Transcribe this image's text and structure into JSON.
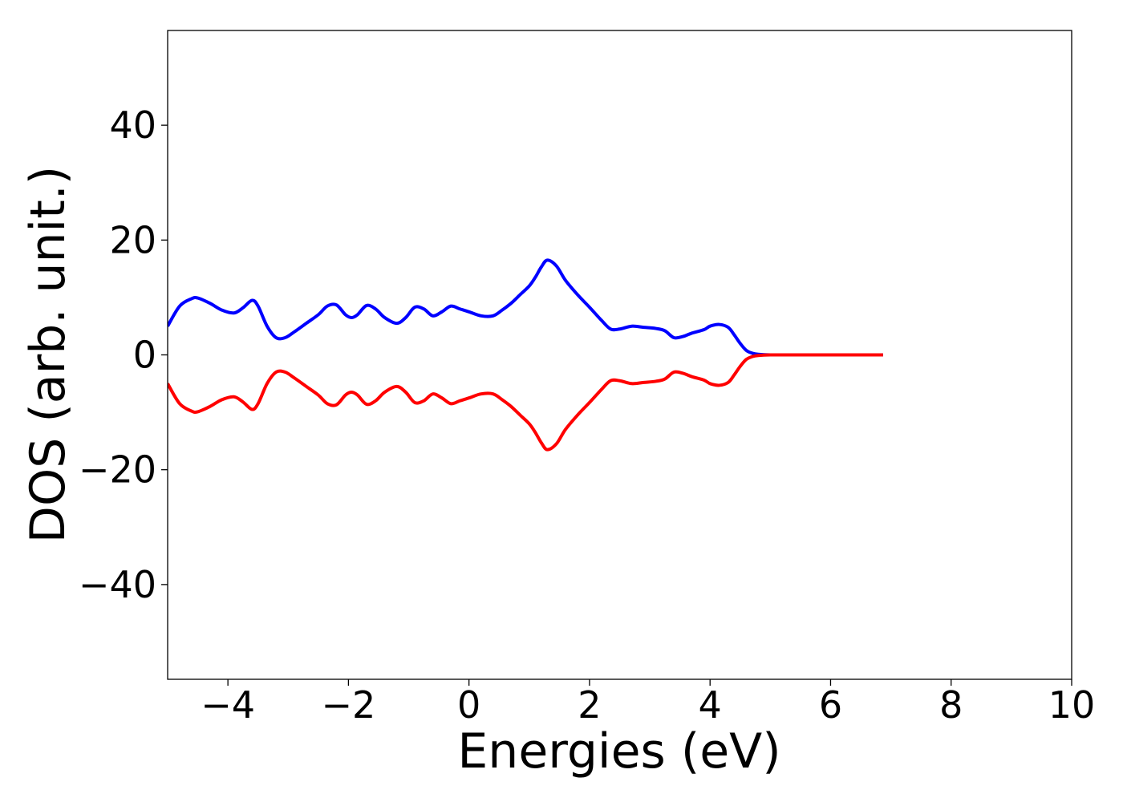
{
  "chart_data": {
    "type": "line",
    "title": "",
    "xlabel": "Energies (eV)",
    "ylabel": "DOS (arb. unit.)",
    "xlim": [
      -5,
      10
    ],
    "ylim": [
      -56.5,
      56.5
    ],
    "xticks": [
      -4,
      -2,
      0,
      2,
      4,
      6,
      8,
      10
    ],
    "yticks": [
      -40,
      -20,
      0,
      20,
      40
    ],
    "xtick_labels": [
      "−4",
      "−2",
      "0",
      "2",
      "4",
      "6",
      "8",
      "10"
    ],
    "ytick_labels": [
      "−40",
      "−20",
      "0",
      "20",
      "40"
    ],
    "grid": false,
    "legend": "none",
    "series": [
      {
        "color": "#0000ff",
        "x": [
          -5.0,
          -4.8,
          -4.6,
          -4.5,
          -4.3,
          -4.1,
          -3.9,
          -3.75,
          -3.6,
          -3.5,
          -3.35,
          -3.2,
          -3.05,
          -2.9,
          -2.7,
          -2.5,
          -2.35,
          -2.2,
          -2.05,
          -1.95,
          -1.85,
          -1.7,
          -1.55,
          -1.4,
          -1.2,
          -1.05,
          -0.9,
          -0.75,
          -0.6,
          -0.45,
          -0.3,
          -0.15,
          0.0,
          0.2,
          0.4,
          0.55,
          0.7,
          0.85,
          1.0,
          1.1,
          1.2,
          1.3,
          1.45,
          1.6,
          1.8,
          2.0,
          2.2,
          2.35,
          2.5,
          2.7,
          2.9,
          3.1,
          3.25,
          3.4,
          3.55,
          3.7,
          3.9,
          4.0,
          4.15,
          4.3,
          4.4,
          4.5,
          4.6,
          4.7,
          4.8,
          5.0,
          5.5,
          6.0,
          6.5,
          6.87
        ],
        "y": [
          5.0,
          8.5,
          9.8,
          9.9,
          9.0,
          7.8,
          7.3,
          8.2,
          9.5,
          8.5,
          5.0,
          3.0,
          3.0,
          4.0,
          5.5,
          7.0,
          8.5,
          8.7,
          7.0,
          6.5,
          7.0,
          8.6,
          8.0,
          6.5,
          5.5,
          6.5,
          8.3,
          8.0,
          6.8,
          7.5,
          8.5,
          8.0,
          7.5,
          6.8,
          6.8,
          7.8,
          9.0,
          10.5,
          12.0,
          13.5,
          15.3,
          16.5,
          15.5,
          13.0,
          10.5,
          8.3,
          6.0,
          4.5,
          4.5,
          5.0,
          4.8,
          4.6,
          4.2,
          3.0,
          3.2,
          3.8,
          4.4,
          5.0,
          5.3,
          4.8,
          3.5,
          2.0,
          0.8,
          0.3,
          0.1,
          0.0,
          0.0,
          0.0,
          0.0,
          0.0
        ]
      },
      {
        "color": "#ff0000",
        "x": [
          -5.0,
          -4.8,
          -4.6,
          -4.5,
          -4.3,
          -4.1,
          -3.9,
          -3.75,
          -3.6,
          -3.5,
          -3.35,
          -3.2,
          -3.05,
          -2.9,
          -2.7,
          -2.5,
          -2.35,
          -2.2,
          -2.05,
          -1.95,
          -1.85,
          -1.7,
          -1.55,
          -1.4,
          -1.2,
          -1.05,
          -0.9,
          -0.75,
          -0.6,
          -0.45,
          -0.3,
          -0.15,
          0.0,
          0.2,
          0.4,
          0.55,
          0.7,
          0.85,
          1.0,
          1.1,
          1.2,
          1.3,
          1.45,
          1.6,
          1.8,
          2.0,
          2.2,
          2.35,
          2.5,
          2.7,
          2.9,
          3.1,
          3.25,
          3.4,
          3.55,
          3.7,
          3.9,
          4.0,
          4.15,
          4.3,
          4.4,
          4.5,
          4.6,
          4.7,
          4.8,
          5.0,
          5.5,
          6.0,
          6.5,
          6.87
        ],
        "y": [
          -5.0,
          -8.5,
          -9.8,
          -9.9,
          -9.0,
          -7.8,
          -7.3,
          -8.2,
          -9.5,
          -8.5,
          -5.0,
          -3.0,
          -3.0,
          -4.0,
          -5.5,
          -7.0,
          -8.5,
          -8.7,
          -7.0,
          -6.5,
          -7.0,
          -8.6,
          -8.0,
          -6.5,
          -5.5,
          -6.5,
          -8.3,
          -8.0,
          -6.8,
          -7.5,
          -8.5,
          -8.0,
          -7.5,
          -6.8,
          -6.8,
          -7.8,
          -9.0,
          -10.5,
          -12.0,
          -13.5,
          -15.3,
          -16.5,
          -15.5,
          -13.0,
          -10.5,
          -8.3,
          -6.0,
          -4.5,
          -4.5,
          -5.0,
          -4.8,
          -4.6,
          -4.2,
          -3.0,
          -3.2,
          -3.8,
          -4.4,
          -5.0,
          -5.3,
          -4.8,
          -3.5,
          -2.0,
          -0.8,
          -0.3,
          -0.1,
          0.0,
          0.0,
          0.0,
          0.0,
          0.0
        ]
      }
    ]
  }
}
